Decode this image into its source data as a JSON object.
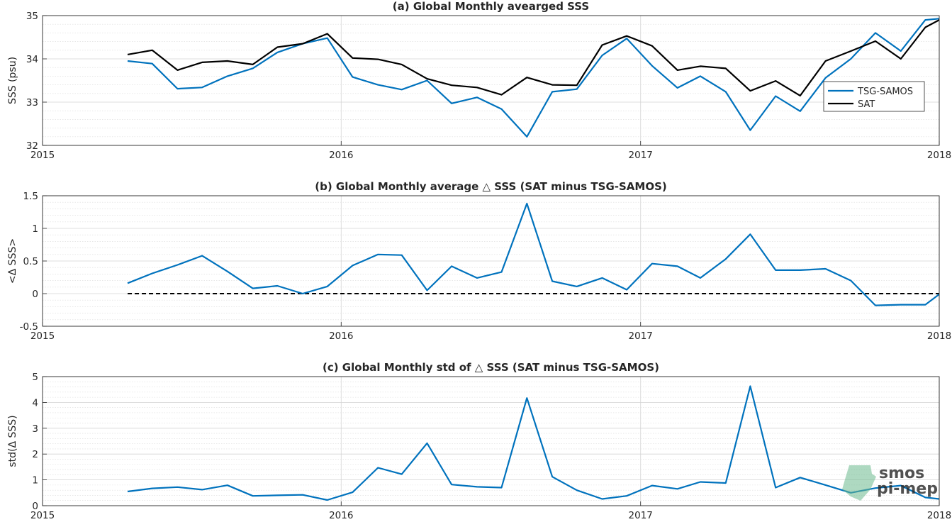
{
  "x_ticks": [
    "2015",
    "2016",
    "2017",
    "2018"
  ],
  "logo": {
    "line1": "smos",
    "line2": "pi-mep"
  },
  "colors": {
    "tsg": "#0072bd",
    "sat": "#000000",
    "zero": "#000000",
    "grid": "#dcdcdc",
    "logo": "#6cb98e"
  },
  "chart_data": [
    {
      "type": "line",
      "title": "(a) Global Monthly avearged SSS",
      "xlabel": "",
      "ylabel": "SSS (psu)",
      "xlim": [
        "2015-01-01",
        "2018-01-01"
      ],
      "ylim": [
        32,
        35
      ],
      "yticks": [
        "32",
        "33",
        "34",
        "35"
      ],
      "grid": true,
      "legend": {
        "placement": "right",
        "entries": [
          "TSG-SAMOS",
          "SAT"
        ]
      },
      "x": [
        "2015-04-15",
        "2015-05-15",
        "2015-06-15",
        "2015-07-15",
        "2015-08-15",
        "2015-09-15",
        "2015-10-15",
        "2015-11-15",
        "2015-12-15",
        "2016-01-15",
        "2016-02-15",
        "2016-03-15",
        "2016-04-15",
        "2016-05-15",
        "2016-06-15",
        "2016-07-15",
        "2016-08-15",
        "2016-09-15",
        "2016-10-15",
        "2016-11-15",
        "2016-12-15",
        "2017-01-15",
        "2017-02-15",
        "2017-03-15",
        "2017-04-15",
        "2017-05-15",
        "2017-06-15",
        "2017-07-15",
        "2017-08-15",
        "2017-09-15",
        "2017-10-15",
        "2017-11-15",
        "2017-12-15",
        "2018-01-01"
      ],
      "series": [
        {
          "name": "TSG-SAMOS",
          "color": "#0072bd",
          "values": [
            33.95,
            33.89,
            33.31,
            33.34,
            33.6,
            33.78,
            34.15,
            34.35,
            34.48,
            33.58,
            33.4,
            33.29,
            33.5,
            32.97,
            33.11,
            32.84,
            32.2,
            33.24,
            33.3,
            34.08,
            34.47,
            33.84,
            33.33,
            33.6,
            33.24,
            32.35,
            33.14,
            32.79,
            33.56,
            34.0,
            34.6,
            34.18,
            34.9,
            34.93
          ]
        },
        {
          "name": "SAT",
          "color": "#000000",
          "values": [
            34.1,
            34.2,
            33.74,
            33.92,
            33.95,
            33.87,
            34.27,
            34.35,
            34.58,
            34.02,
            33.99,
            33.87,
            33.54,
            33.39,
            33.34,
            33.17,
            33.57,
            33.4,
            33.39,
            34.32,
            34.53,
            34.3,
            33.74,
            33.83,
            33.78,
            33.26,
            33.49,
            33.15,
            33.95,
            34.18,
            34.41,
            34.0,
            34.73,
            34.9
          ]
        }
      ]
    },
    {
      "type": "line",
      "title": "(b) Global Monthly average △ SSS (SAT minus TSG-SAMOS)",
      "xlabel": "",
      "ylabel": "<Δ SSS>",
      "xlim": [
        "2015-01-01",
        "2018-01-01"
      ],
      "ylim": [
        -0.5,
        1.5
      ],
      "yticks": [
        "-0.5",
        "0",
        "0.5",
        "1",
        "1.5"
      ],
      "grid": true,
      "zero_line": true,
      "x": [
        "2015-04-15",
        "2015-05-15",
        "2015-06-15",
        "2015-07-15",
        "2015-08-15",
        "2015-09-15",
        "2015-10-15",
        "2015-11-15",
        "2015-12-15",
        "2016-01-15",
        "2016-02-15",
        "2016-03-15",
        "2016-04-15",
        "2016-05-15",
        "2016-06-15",
        "2016-07-15",
        "2016-08-15",
        "2016-09-15",
        "2016-10-15",
        "2016-11-15",
        "2016-12-15",
        "2017-01-15",
        "2017-02-15",
        "2017-03-15",
        "2017-04-15",
        "2017-05-15",
        "2017-06-15",
        "2017-07-15",
        "2017-08-15",
        "2017-09-15",
        "2017-10-15",
        "2017-11-15",
        "2017-12-15",
        "2018-01-01"
      ],
      "series": [
        {
          "color": "#0072bd",
          "values": [
            0.16,
            0.31,
            0.44,
            0.58,
            0.34,
            0.08,
            0.12,
            0.0,
            0.11,
            0.43,
            0.6,
            0.59,
            0.05,
            0.42,
            0.24,
            0.33,
            1.38,
            0.19,
            0.11,
            0.24,
            0.06,
            0.46,
            0.42,
            0.24,
            0.53,
            0.91,
            0.36,
            0.36,
            0.38,
            0.2,
            -0.18,
            -0.17,
            -0.17,
            -0.01
          ]
        }
      ]
    },
    {
      "type": "line",
      "title": "(c) Global Monthly std of △ SSS (SAT minus TSG-SAMOS)",
      "xlabel": "",
      "ylabel": "std(Δ SSS)",
      "xlim": [
        "2015-01-01",
        "2018-01-01"
      ],
      "ylim": [
        0,
        5
      ],
      "yticks": [
        "0",
        "1",
        "2",
        "3",
        "4",
        "5"
      ],
      "grid": true,
      "x": [
        "2015-04-15",
        "2015-05-15",
        "2015-06-15",
        "2015-07-15",
        "2015-08-15",
        "2015-09-15",
        "2015-10-15",
        "2015-11-15",
        "2015-12-15",
        "2016-01-15",
        "2016-02-15",
        "2016-03-15",
        "2016-04-15",
        "2016-05-15",
        "2016-06-15",
        "2016-07-15",
        "2016-08-15",
        "2016-09-15",
        "2016-10-15",
        "2016-11-15",
        "2016-12-15",
        "2017-01-15",
        "2017-02-15",
        "2017-03-15",
        "2017-04-15",
        "2017-05-15",
        "2017-06-15",
        "2017-07-15",
        "2017-08-15",
        "2017-09-15",
        "2017-10-15",
        "2017-11-15",
        "2017-12-15",
        "2018-01-01"
      ],
      "series": [
        {
          "color": "#0072bd",
          "values": [
            0.55,
            0.67,
            0.72,
            0.62,
            0.79,
            0.38,
            0.4,
            0.42,
            0.22,
            0.52,
            1.47,
            1.22,
            2.42,
            0.82,
            0.73,
            0.7,
            4.17,
            1.12,
            0.6,
            0.26,
            0.38,
            0.78,
            0.65,
            0.92,
            0.88,
            4.63,
            0.7,
            1.09,
            0.8,
            0.5,
            0.68,
            0.78,
            0.32,
            0.26
          ]
        }
      ]
    }
  ]
}
